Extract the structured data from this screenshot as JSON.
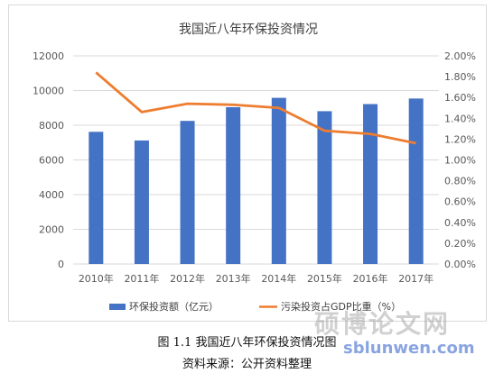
{
  "chart_data": {
    "type": "bar+line",
    "title": "我国近八年环保投资情况",
    "categories": [
      "2010年",
      "2011年",
      "2012年",
      "2013年",
      "2014年",
      "2015年",
      "2016年",
      "2017年"
    ],
    "series": [
      {
        "name": "环保投资额（亿元）",
        "type": "bar",
        "axis": "left",
        "color": "#4472C4",
        "values": [
          7620,
          7120,
          8250,
          9040,
          9580,
          8810,
          9220,
          9540
        ]
      },
      {
        "name": "污染投资占GDP比重（%）",
        "type": "line",
        "axis": "right",
        "color": "#ED7D31",
        "values": [
          1.84,
          1.46,
          1.54,
          1.53,
          1.5,
          1.28,
          1.25,
          1.16
        ]
      }
    ],
    "y_left": {
      "min": 0,
      "max": 12000,
      "ticks": [
        "0",
        "2000",
        "4000",
        "6000",
        "8000",
        "10000",
        "12000"
      ]
    },
    "y_right": {
      "min": 0,
      "max": 2.0,
      "ticks": [
        "0.00%",
        "0.20%",
        "0.40%",
        "0.60%",
        "0.80%",
        "1.00%",
        "1.20%",
        "1.40%",
        "1.60%",
        "1.80%",
        "2.00%"
      ]
    },
    "grid": true,
    "legend_position": "bottom"
  },
  "caption": {
    "figure": "图 1.1  我国近八年环保投资情况图",
    "source": "资料来源：公开资料整理"
  },
  "watermark": {
    "brand": "硕博论文网",
    "url": "sblunwen.com"
  }
}
